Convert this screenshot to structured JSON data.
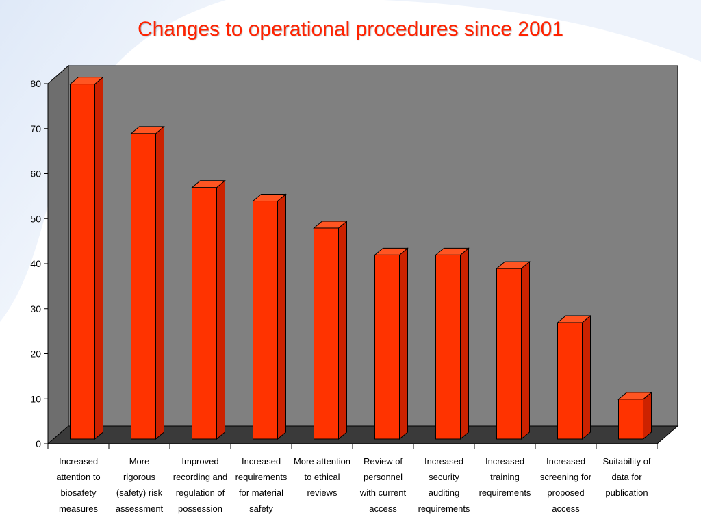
{
  "chart_data": {
    "type": "bar",
    "title": "Changes to operational procedures since 2001",
    "xlabel": "",
    "ylabel": "",
    "ylim": [
      0,
      80
    ],
    "yticks": [
      0,
      10,
      20,
      30,
      40,
      50,
      60,
      70,
      80
    ],
    "grid": false,
    "legend": "none",
    "categories": [
      [
        "Increased",
        "attention to",
        "biosafety",
        "measures"
      ],
      [
        "More",
        "rigorous",
        "(safety) risk",
        "assessment"
      ],
      [
        "Improved",
        "recording and",
        "regulation of",
        "possession"
      ],
      [
        "Increased",
        "requirements",
        "for material",
        "safety"
      ],
      [
        "More attention",
        "to ethical",
        "reviews"
      ],
      [
        "Review of",
        "personnel",
        "with current",
        "access"
      ],
      [
        "Increased",
        "security",
        "auditing",
        "requirements"
      ],
      [
        "Increased",
        "training",
        "requirements"
      ],
      [
        "Increased",
        "screening for",
        "proposed",
        "access"
      ],
      [
        "Suitability of",
        "data for",
        "publication"
      ]
    ],
    "values": [
      79,
      68,
      56,
      53,
      47,
      41,
      41,
      38,
      26,
      9
    ],
    "colors": {
      "bar_front": "#ff3300",
      "bar_top": "#ff5522",
      "bar_side": "#cc2200",
      "plot_back": "#808080",
      "plot_side": "#6e6e6e",
      "plot_floor": "#3a3a3a",
      "title": "#ff2200"
    }
  }
}
